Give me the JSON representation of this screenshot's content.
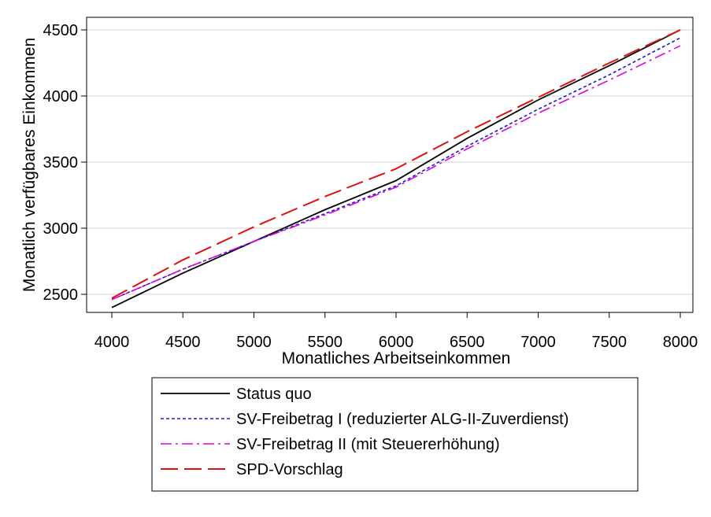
{
  "chart_data": {
    "type": "line",
    "title": "",
    "xlabel": "Monatliches Arbeitseinkommen",
    "ylabel": "Monatlich verfügbares Einkommen",
    "xlim": [
      4000,
      8000
    ],
    "ylim": [
      2400,
      4500
    ],
    "xticks": [
      "4000",
      "4500",
      "5000",
      "5500",
      "6000",
      "6500",
      "7000",
      "7500",
      "8000"
    ],
    "yticks": [
      "2500",
      "3000",
      "3500",
      "4000",
      "4500"
    ],
    "grid": "horizontal",
    "legend_position": "bottom",
    "series": [
      {
        "name": "Status quo",
        "color": "#000000",
        "dash": "solid",
        "x": [
          4000,
          4500,
          5000,
          5500,
          6000,
          6500,
          7000,
          7500,
          8000
        ],
        "y": [
          2400,
          2660,
          2900,
          3140,
          3360,
          3680,
          3970,
          4230,
          4500
        ]
      },
      {
        "name": "SV-Freibetrag I (reduzierter ALG-II-Zuverdienst)",
        "color": "#1a1acc",
        "dash": "dotted",
        "x": [
          4000,
          4500,
          5000,
          5500,
          6000,
          6500,
          7000,
          7500,
          8000
        ],
        "y": [
          2460,
          2690,
          2900,
          3110,
          3320,
          3620,
          3900,
          4160,
          4440
        ]
      },
      {
        "name": "SV-Freibetrag II (mit Steuererhöhung)",
        "color": "#e000e0",
        "dash": "dashdot",
        "x": [
          4000,
          4500,
          5000,
          5500,
          6000,
          6500,
          7000,
          7500,
          8000
        ],
        "y": [
          2460,
          2690,
          2900,
          3100,
          3310,
          3600,
          3870,
          4120,
          4380
        ]
      },
      {
        "name": "SPD-Vorschlag",
        "color": "#dd1111",
        "dash": "longdash",
        "x": [
          4000,
          4500,
          5000,
          5500,
          6000,
          6500,
          7000,
          7500,
          8000
        ],
        "y": [
          2470,
          2760,
          3010,
          3240,
          3450,
          3730,
          3990,
          4250,
          4500
        ]
      }
    ]
  }
}
